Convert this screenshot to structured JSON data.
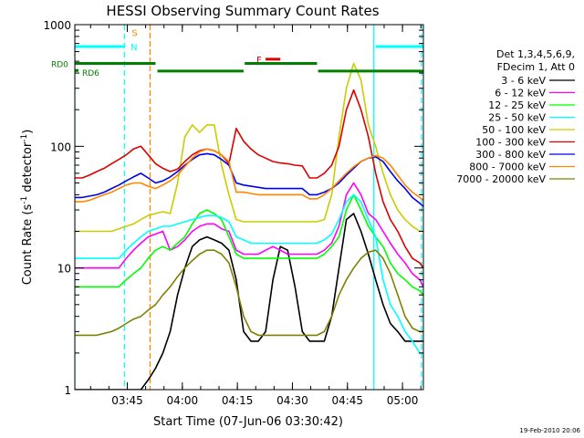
{
  "chart_data": {
    "type": "line",
    "title": "HESSI Observing Summary Count Rates",
    "xlabel": "Start Time (07-Jun-06 03:30:42)",
    "ylabel_main": "Count Rate (s",
    "ylabel_sup": "-1",
    "ylabel_mid": " detector",
    "ylabel_sup2": "-1",
    "ylabel_end": ")",
    "x_unit": "minutes after 03:30:42 UT",
    "xlim": [
      0,
      95
    ],
    "ylim": [
      1,
      1000
    ],
    "yscale": "log",
    "x_ticks": [
      {
        "label": "03:45",
        "value": 14.3
      },
      {
        "label": "04:00",
        "value": 29.3
      },
      {
        "label": "04:15",
        "value": 44.3
      },
      {
        "label": "04:30",
        "value": 59.3
      },
      {
        "label": "04:45",
        "value": 74.3
      },
      {
        "label": "05:00",
        "value": 89.3
      }
    ],
    "y_ticks": [
      {
        "label": "1",
        "value": 1
      },
      {
        "label": "10",
        "value": 10
      },
      {
        "label": "100",
        "value": 100
      },
      {
        "label": "1000",
        "value": 1000
      }
    ],
    "legend_header": [
      "Det 1,3,4,5,6,9,",
      "FDecim 1, Att 0"
    ],
    "series": [
      {
        "name": "3 - 6 keV",
        "color": "#000000",
        "x": [
          0,
          5,
          8,
          10,
          12,
          14,
          16,
          18,
          20,
          22,
          24,
          26,
          28,
          30,
          32,
          34,
          36,
          38,
          40,
          42,
          44,
          46,
          48,
          50,
          52,
          54,
          56,
          58,
          60,
          62,
          64,
          66,
          68,
          70,
          72,
          74,
          76,
          78,
          80,
          82,
          84,
          86,
          88,
          90,
          92,
          94,
          95
        ],
        "y": [
          1,
          1,
          1,
          1,
          1,
          1,
          1,
          1,
          1.2,
          1.5,
          2,
          3,
          6,
          10,
          15,
          17,
          18,
          17,
          16,
          14,
          8,
          3,
          2.5,
          2.5,
          3,
          8,
          15,
          14,
          7,
          3,
          2.5,
          2.5,
          2.5,
          4,
          10,
          25,
          28,
          20,
          13,
          8,
          5,
          3.5,
          3,
          2.5,
          2.5,
          2.5,
          2.5
        ]
      },
      {
        "name": "6 - 12 keV",
        "color": "#ff00ff",
        "x": [
          0,
          2,
          4,
          6,
          8,
          10,
          12,
          14,
          16,
          18,
          20,
          22,
          24,
          26,
          28,
          30,
          32,
          34,
          36,
          38,
          40,
          42,
          44,
          46,
          48,
          50,
          52,
          54,
          56,
          58,
          60,
          62,
          64,
          66,
          68,
          70,
          72,
          74,
          76,
          78,
          80,
          82,
          84,
          86,
          88,
          90,
          92,
          94,
          95
        ],
        "y": [
          10,
          10,
          10,
          10,
          10,
          10,
          10,
          12,
          14,
          16,
          18,
          19,
          20,
          14,
          15,
          17,
          20,
          22,
          23,
          23,
          21,
          20,
          14,
          13,
          13,
          13,
          14,
          15,
          14,
          13,
          13,
          13,
          13,
          13,
          14,
          16,
          22,
          40,
          50,
          40,
          28,
          25,
          20,
          16,
          13,
          11,
          9,
          8,
          7
        ]
      },
      {
        "name": "12 - 25 keV",
        "color": "#00ff00",
        "x": [
          0,
          2,
          4,
          6,
          8,
          10,
          12,
          14,
          16,
          18,
          20,
          22,
          24,
          26,
          28,
          30,
          32,
          34,
          36,
          38,
          40,
          42,
          44,
          46,
          48,
          50,
          52,
          54,
          56,
          58,
          60,
          62,
          64,
          66,
          68,
          70,
          72,
          74,
          76,
          78,
          80,
          82,
          84,
          86,
          88,
          90,
          92,
          94,
          95
        ],
        "y": [
          7,
          7,
          7,
          7,
          7,
          7,
          7,
          8,
          9,
          10,
          12,
          14,
          15,
          14,
          16,
          18,
          23,
          28,
          30,
          28,
          25,
          18,
          13,
          12,
          12,
          12,
          12,
          12,
          12,
          12,
          12,
          12,
          12,
          12,
          13,
          15,
          18,
          30,
          40,
          30,
          22,
          18,
          15,
          11,
          9,
          8,
          7,
          6.5,
          6
        ]
      },
      {
        "name": "25 - 50 keV",
        "color": "#00ffff",
        "x": [
          0,
          2,
          4,
          6,
          8,
          10,
          12,
          14,
          16,
          18,
          20,
          22,
          24,
          26,
          28,
          30,
          32,
          34,
          36,
          38,
          40,
          42,
          44,
          46,
          48,
          50,
          52,
          54,
          56,
          58,
          60,
          62,
          64,
          66,
          68,
          70,
          72,
          74,
          76,
          78,
          80,
          82,
          84,
          86,
          88,
          90,
          92,
          94,
          95
        ],
        "y": [
          12,
          12,
          12,
          12,
          12,
          12,
          12,
          14,
          16,
          18,
          20,
          21,
          22,
          22,
          23,
          24,
          25,
          26,
          27,
          27,
          26,
          24,
          18,
          17,
          16,
          16,
          16,
          16,
          16,
          16,
          16,
          16,
          16,
          16,
          17,
          19,
          25,
          35,
          40,
          35,
          25,
          18,
          8,
          5,
          4,
          3,
          2.5,
          2,
          2
        ]
      },
      {
        "name": "50 - 100 keV",
        "color": "#cccc00",
        "x": [
          0,
          2,
          4,
          6,
          8,
          10,
          12,
          14,
          16,
          18,
          20,
          22,
          24,
          26,
          28,
          30,
          32,
          34,
          36,
          38,
          40,
          42,
          44,
          46,
          48,
          50,
          52,
          54,
          56,
          58,
          60,
          62,
          64,
          66,
          68,
          70,
          72,
          74,
          76,
          78,
          80,
          82,
          84,
          86,
          88,
          90,
          92,
          94,
          95
        ],
        "y": [
          20,
          20,
          20,
          20,
          20,
          20,
          21,
          22,
          23,
          25,
          27,
          28,
          29,
          28,
          50,
          120,
          150,
          130,
          150,
          150,
          70,
          40,
          25,
          24,
          24,
          24,
          24,
          24,
          24,
          24,
          24,
          24,
          24,
          24,
          25,
          40,
          120,
          300,
          480,
          350,
          150,
          100,
          60,
          40,
          30,
          25,
          22,
          20,
          20
        ]
      },
      {
        "name": "100 - 300 keV",
        "color": "#dd0000",
        "x": [
          0,
          2,
          4,
          6,
          8,
          10,
          12,
          14,
          16,
          18,
          20,
          22,
          24,
          26,
          28,
          30,
          32,
          34,
          36,
          38,
          40,
          42,
          44,
          46,
          48,
          50,
          52,
          54,
          56,
          58,
          60,
          62,
          64,
          66,
          68,
          70,
          72,
          74,
          76,
          78,
          80,
          82,
          84,
          86,
          88,
          90,
          92,
          94,
          95
        ],
        "y": [
          55,
          55,
          58,
          62,
          66,
          72,
          78,
          85,
          95,
          100,
          85,
          72,
          66,
          62,
          65,
          75,
          85,
          92,
          95,
          92,
          85,
          72,
          140,
          110,
          95,
          85,
          80,
          75,
          73,
          72,
          70,
          69,
          55,
          55,
          60,
          70,
          100,
          200,
          290,
          200,
          120,
          60,
          35,
          25,
          20,
          15,
          12,
          11,
          10
        ]
      },
      {
        "name": "300 - 800 keV",
        "color": "#0000ee",
        "x": [
          0,
          2,
          4,
          6,
          8,
          10,
          12,
          14,
          16,
          18,
          20,
          22,
          24,
          26,
          28,
          30,
          32,
          34,
          36,
          38,
          40,
          42,
          44,
          46,
          48,
          50,
          52,
          54,
          56,
          58,
          60,
          62,
          64,
          66,
          68,
          70,
          72,
          74,
          76,
          78,
          80,
          82,
          84,
          86,
          88,
          90,
          92,
          94,
          95
        ],
        "y": [
          38,
          38,
          39,
          40,
          42,
          45,
          48,
          52,
          56,
          60,
          55,
          50,
          52,
          56,
          62,
          70,
          78,
          85,
          87,
          85,
          78,
          70,
          50,
          48,
          47,
          46,
          45,
          45,
          45,
          45,
          45,
          45,
          40,
          40,
          42,
          45,
          50,
          58,
          66,
          75,
          80,
          82,
          75,
          62,
          52,
          45,
          38,
          34,
          32
        ]
      },
      {
        "name": "800 - 7000 keV",
        "color": "#ff8800",
        "x": [
          0,
          2,
          4,
          6,
          8,
          10,
          12,
          14,
          16,
          18,
          20,
          22,
          24,
          26,
          28,
          30,
          32,
          34,
          36,
          38,
          40,
          42,
          44,
          46,
          48,
          50,
          52,
          54,
          56,
          58,
          60,
          62,
          64,
          66,
          68,
          70,
          72,
          74,
          76,
          78,
          80,
          82,
          84,
          86,
          88,
          90,
          92,
          94,
          95
        ],
        "y": [
          35,
          35,
          36,
          38,
          40,
          42,
          45,
          48,
          50,
          50,
          47,
          45,
          48,
          52,
          58,
          68,
          80,
          90,
          95,
          92,
          85,
          75,
          42,
          42,
          41,
          40,
          40,
          40,
          40,
          40,
          40,
          40,
          37,
          37,
          40,
          45,
          52,
          60,
          68,
          75,
          80,
          84,
          80,
          70,
          58,
          48,
          42,
          38,
          36
        ]
      },
      {
        "name": "7000 - 20000 keV",
        "color": "#808000",
        "x": [
          0,
          2,
          4,
          6,
          8,
          10,
          12,
          14,
          16,
          18,
          20,
          22,
          24,
          26,
          28,
          30,
          32,
          34,
          36,
          38,
          40,
          42,
          44,
          46,
          48,
          50,
          52,
          54,
          56,
          58,
          60,
          62,
          64,
          66,
          68,
          70,
          72,
          74,
          76,
          78,
          80,
          82,
          84,
          86,
          88,
          90,
          92,
          94,
          95
        ],
        "y": [
          2.8,
          2.8,
          2.8,
          2.8,
          2.9,
          3,
          3.2,
          3.5,
          3.8,
          4,
          4.5,
          5,
          6,
          7,
          8.5,
          10,
          11.5,
          13,
          14,
          14,
          13,
          11,
          7,
          4,
          3,
          2.8,
          2.8,
          2.8,
          2.8,
          2.8,
          2.8,
          2.8,
          2.8,
          2.8,
          3,
          4,
          6,
          8,
          10,
          12,
          13.5,
          14,
          12,
          9,
          6,
          4,
          3.2,
          3,
          3
        ]
      }
    ],
    "flag_bars": [
      {
        "label": "S",
        "color": "#ff8800",
        "y": 860
      },
      {
        "label": "N",
        "color": "#00ffff",
        "y": 660
      },
      {
        "label": "F",
        "color": "#dd0000",
        "y": 520
      },
      {
        "label": "RD0",
        "color": "#008000",
        "y": 480
      },
      {
        "label": "RD6",
        "color": "#008000",
        "y": 420
      }
    ],
    "footer_date": "19-Feb-2010 20:06"
  }
}
